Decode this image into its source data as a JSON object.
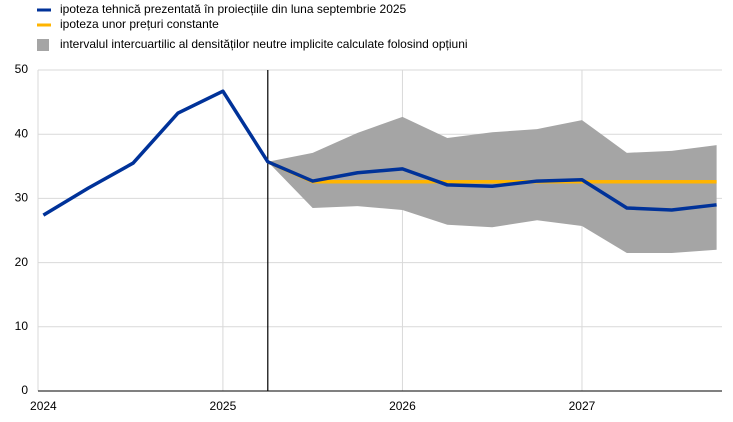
{
  "chart_data": {
    "type": "line",
    "x": [
      2024,
      2024.25,
      2024.5,
      2024.75,
      2025,
      2025.25,
      2025.5,
      2025.75,
      2026,
      2026.25,
      2026.5,
      2026.75,
      2027,
      2027.25,
      2027.5,
      2027.75
    ],
    "series": [
      {
        "name": "ipoteza tehnică prezentată în proiecțiile din luna septembrie 2025",
        "color": "#003299",
        "values": [
          27.4,
          31.6,
          35.5,
          43.3,
          46.7,
          35.7,
          32.7,
          34.0,
          34.6,
          32.1,
          31.9,
          32.7,
          32.9,
          28.5,
          28.2,
          29.0
        ]
      },
      {
        "name": "ipoteza unor prețuri constante",
        "color": "#ffb400",
        "values": [
          null,
          null,
          null,
          null,
          null,
          35.7,
          32.6,
          32.6,
          32.6,
          32.6,
          32.6,
          32.6,
          32.6,
          32.6,
          32.6,
          32.6
        ]
      }
    ],
    "band": {
      "name": "intervalul intercuartilic al densităților neutre implicite calculate folosind opțiuni",
      "color": "#a5a5a5",
      "lower": [
        null,
        null,
        null,
        null,
        null,
        35.7,
        28.5,
        28.8,
        28.2,
        25.9,
        25.5,
        26.6,
        25.7,
        21.5,
        21.5,
        22.0
      ],
      "upper": [
        null,
        null,
        null,
        null,
        null,
        35.7,
        37.1,
        40.2,
        42.7,
        39.4,
        40.3,
        40.8,
        42.2,
        37.1,
        37.4,
        38.3
      ]
    },
    "vline": 2025.25,
    "xlim": [
      2023.97,
      2027.78
    ],
    "xticks": [
      2024,
      2025,
      2026,
      2027
    ],
    "ylim": [
      0,
      50
    ],
    "yticks": [
      0,
      10,
      20,
      30,
      40,
      50
    ],
    "grid": true
  }
}
